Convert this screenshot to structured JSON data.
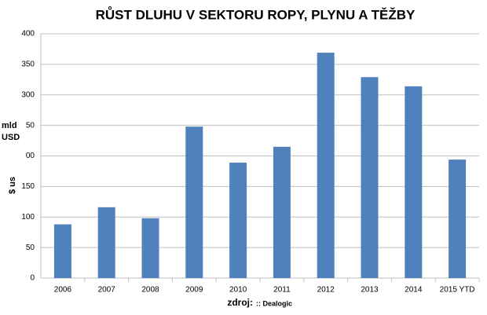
{
  "chart_data": {
    "type": "bar",
    "title": "RŮST DLUHU V SEKTORU ROPY, PLYNU A TĚŽBY",
    "ylabel_lines": [
      "mld",
      "USD"
    ],
    "ylabel_rotated": "$ us",
    "xlabel": "zdroj:",
    "xlabel_source": ":: Dealogic",
    "categories": [
      "2006",
      "2007",
      "2008",
      "2009",
      "2010",
      "2011",
      "2012",
      "2013",
      "2014",
      "2015 YTD"
    ],
    "values": [
      88,
      116,
      98,
      248,
      189,
      215,
      369,
      329,
      314,
      194
    ],
    "color": "#4f81bd",
    "ylim": [
      0,
      400
    ],
    "yticks": [
      0,
      50,
      100,
      150,
      {
        "value": 200,
        "label": "00"
      },
      {
        "value": 250,
        "label": "50"
      },
      300,
      350,
      400
    ],
    "grid": true
  }
}
